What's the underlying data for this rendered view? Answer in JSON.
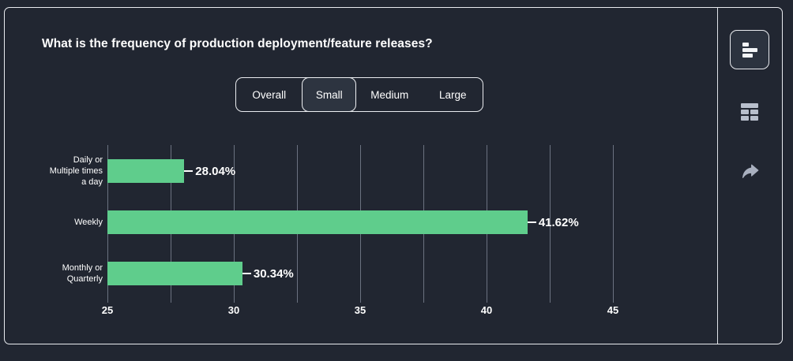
{
  "header": {
    "title": "What is the frequency of production deployment/feature releases?"
  },
  "tabs": [
    {
      "label": "Overall",
      "selected": false
    },
    {
      "label": "Small",
      "selected": true
    },
    {
      "label": "Medium",
      "selected": false
    },
    {
      "label": "Large",
      "selected": false
    }
  ],
  "toolbar": {
    "icons": [
      {
        "name": "horizontal-bar-chart-icon",
        "active": true
      },
      {
        "name": "table-view-icon",
        "active": false
      },
      {
        "name": "share-icon",
        "active": false
      }
    ]
  },
  "chart_data": {
    "type": "bar",
    "orientation": "horizontal",
    "title": "",
    "xlabel": "",
    "ylabel": "",
    "categories": [
      "Daily or\nMultiple times\na day",
      "Weekly",
      "Monthly or\nQuarterly"
    ],
    "values": [
      28.04,
      41.62,
      30.34
    ],
    "value_labels": [
      "28.04%",
      "41.62%",
      "30.34%"
    ],
    "xlim": [
      25,
      47.5
    ],
    "xticks": [
      25,
      30,
      35,
      40,
      45
    ],
    "gridline_step": 2.5,
    "grid": true,
    "legend": false,
    "bar_color": "#5fcd8c",
    "gridline_color": "#6b7280",
    "text_color": "#ffffff"
  },
  "colors": {
    "background": "#212631",
    "card_border": "#e9ebef",
    "selected_tab_bg": "#2d3440",
    "icon_gray": "#b8bfcc",
    "share_gray": "#a9b0bf"
  }
}
